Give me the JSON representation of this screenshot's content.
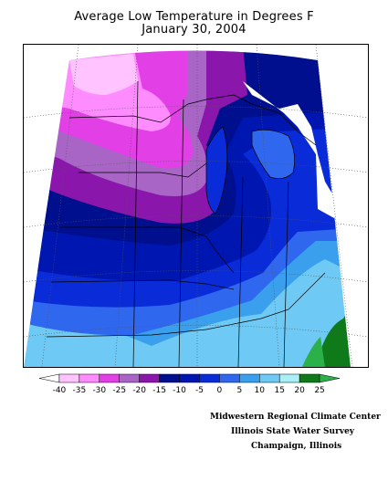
{
  "title": {
    "line1": "Average Low Temperature in Degrees F",
    "line2": "January 30, 2004"
  },
  "legend": {
    "ticks": [
      "-40",
      "-35",
      "-30",
      "-25",
      "-20",
      "-15",
      "-10",
      "-5",
      "0",
      "5",
      "10",
      "15",
      "20",
      "25"
    ],
    "colors": [
      "#ffffff",
      "#ffc4ff",
      "#ff8cff",
      "#e23fe6",
      "#a865c6",
      "#8a16ab",
      "#000f8e",
      "#0016b0",
      "#0a2bd8",
      "#2f67ee",
      "#3aa0ee",
      "#6ec9f4",
      "#aaeef8",
      "#0f7a1a",
      "#2bb04a"
    ]
  },
  "credits": {
    "line1": "Midwestern Regional Climate Center",
    "line2": "Illinois State Water Survey",
    "line3": "Champaign, Illinois"
  }
}
